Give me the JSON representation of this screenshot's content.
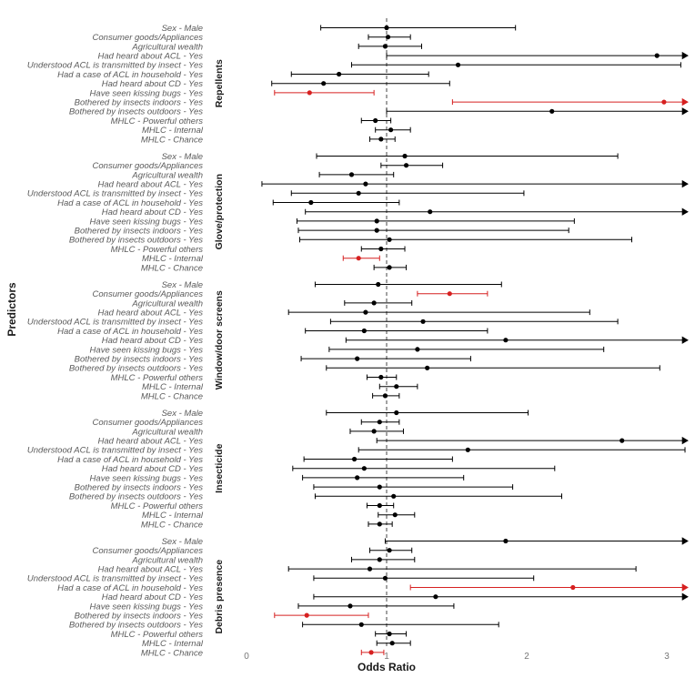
{
  "chart_data": {
    "type": "forest",
    "xlabel": "Odds Ratio",
    "ylabel": "Predictors",
    "xlim": [
      0,
      3.15
    ],
    "x_ticks": [
      0,
      1,
      2,
      3
    ],
    "x_tick_labels": [
      "0",
      "1",
      "2",
      "3"
    ],
    "reference_line": 1,
    "colors": {
      "normal": "#000000",
      "significant": "#d62020",
      "reference": "#444444"
    },
    "panels": [
      {
        "name": "Repellents",
        "rows": [
          {
            "label": "Sex - Male",
            "or": 1.0,
            "lo": 0.53,
            "hi": 1.92,
            "sig": false,
            "arrow": false
          },
          {
            "label": "Consumer goods/Appliances",
            "or": 1.01,
            "lo": 0.87,
            "hi": 1.17,
            "sig": false,
            "arrow": false
          },
          {
            "label": "Agricultural wealth",
            "or": 0.99,
            "lo": 0.8,
            "hi": 1.25,
            "sig": false,
            "arrow": false
          },
          {
            "label": "Had heard about ACL - Yes",
            "or": 2.93,
            "lo": 1.0,
            "hi": 3.15,
            "sig": false,
            "arrow": true
          },
          {
            "label": "Understood ACL is transmitted by insect - Yes",
            "or": 1.51,
            "lo": 0.75,
            "hi": 3.1,
            "sig": false,
            "arrow": false
          },
          {
            "label": "Had a case of ACL in household - Yes",
            "or": 0.66,
            "lo": 0.32,
            "hi": 1.3,
            "sig": false,
            "arrow": false
          },
          {
            "label": "Had heard about CD - Yes",
            "or": 0.55,
            "lo": 0.18,
            "hi": 1.45,
            "sig": false,
            "arrow": false
          },
          {
            "label": "Have seen kissing bugs - Yes",
            "or": 0.45,
            "lo": 0.2,
            "hi": 0.91,
            "sig": true,
            "arrow": false
          },
          {
            "label": "Bothered by insects indoors - Yes",
            "or": 2.98,
            "lo": 1.47,
            "hi": 3.15,
            "sig": true,
            "arrow": true
          },
          {
            "label": "Bothered by insects outdoors - Yes",
            "or": 2.18,
            "lo": 1.0,
            "hi": 3.15,
            "sig": false,
            "arrow": true
          },
          {
            "label": "MHLC - Powerful others",
            "or": 0.92,
            "lo": 0.82,
            "hi": 1.03,
            "sig": false,
            "arrow": false
          },
          {
            "label": "MHLC - Internal",
            "or": 1.03,
            "lo": 0.92,
            "hi": 1.17,
            "sig": false,
            "arrow": false
          },
          {
            "label": "MHLC - Chance",
            "or": 0.96,
            "lo": 0.88,
            "hi": 1.06,
            "sig": false,
            "arrow": false
          }
        ]
      },
      {
        "name": "Glove/protection",
        "rows": [
          {
            "label": "Sex - Male",
            "or": 1.13,
            "lo": 0.5,
            "hi": 2.65,
            "sig": false,
            "arrow": false
          },
          {
            "label": "Consumer goods/Appliances",
            "or": 1.14,
            "lo": 0.96,
            "hi": 1.4,
            "sig": false,
            "arrow": false
          },
          {
            "label": "Agricultural wealth",
            "or": 0.75,
            "lo": 0.52,
            "hi": 1.05,
            "sig": false,
            "arrow": false
          },
          {
            "label": "Had heard about ACL - Yes",
            "or": 0.85,
            "lo": 0.11,
            "hi": 3.15,
            "sig": false,
            "arrow": true
          },
          {
            "label": "Understood ACL is transmitted by insect - Yes",
            "or": 0.8,
            "lo": 0.32,
            "hi": 1.98,
            "sig": false,
            "arrow": false
          },
          {
            "label": "Had a case of ACL in household - Yes",
            "or": 0.46,
            "lo": 0.19,
            "hi": 1.09,
            "sig": false,
            "arrow": false
          },
          {
            "label": "Had heard about CD - Yes",
            "or": 1.31,
            "lo": 0.42,
            "hi": 3.15,
            "sig": false,
            "arrow": true
          },
          {
            "label": "Have seen kissing bugs - Yes",
            "or": 0.93,
            "lo": 0.36,
            "hi": 2.34,
            "sig": false,
            "arrow": false
          },
          {
            "label": "Bothered by insects indoors - Yes",
            "or": 0.93,
            "lo": 0.37,
            "hi": 2.3,
            "sig": false,
            "arrow": false
          },
          {
            "label": "Bothered by insects outdoors - Yes",
            "or": 1.02,
            "lo": 0.38,
            "hi": 2.75,
            "sig": false,
            "arrow": false
          },
          {
            "label": "MHLC - Powerful others",
            "or": 0.96,
            "lo": 0.82,
            "hi": 1.13,
            "sig": false,
            "arrow": false
          },
          {
            "label": "MHLC - Internal",
            "or": 0.8,
            "lo": 0.69,
            "hi": 0.95,
            "sig": true,
            "arrow": false
          },
          {
            "label": "MHLC - Chance",
            "or": 1.02,
            "lo": 0.91,
            "hi": 1.14,
            "sig": false,
            "arrow": false
          }
        ]
      },
      {
        "name": "Window/door screens",
        "rows": [
          {
            "label": "Sex - Male",
            "or": 0.94,
            "lo": 0.49,
            "hi": 1.82,
            "sig": false,
            "arrow": false
          },
          {
            "label": "Consumer goods/Appliances",
            "or": 1.45,
            "lo": 1.22,
            "hi": 1.72,
            "sig": true,
            "arrow": false
          },
          {
            "label": "Agricultural wealth",
            "or": 0.91,
            "lo": 0.7,
            "hi": 1.18,
            "sig": false,
            "arrow": false
          },
          {
            "label": "Had heard about ACL - Yes",
            "or": 0.85,
            "lo": 0.3,
            "hi": 2.45,
            "sig": false,
            "arrow": false
          },
          {
            "label": "Understood ACL is transmitted by insect - Yes",
            "or": 1.26,
            "lo": 0.6,
            "hi": 2.65,
            "sig": false,
            "arrow": false
          },
          {
            "label": "Had a case of ACL in household - Yes",
            "or": 0.84,
            "lo": 0.42,
            "hi": 1.72,
            "sig": false,
            "arrow": false
          },
          {
            "label": "Had heard about CD - Yes",
            "or": 1.85,
            "lo": 0.71,
            "hi": 3.15,
            "sig": false,
            "arrow": true
          },
          {
            "label": "Have seen kissing bugs - Yes",
            "or": 1.22,
            "lo": 0.59,
            "hi": 2.55,
            "sig": false,
            "arrow": false
          },
          {
            "label": "Bothered by insects indoors - Yes",
            "or": 0.79,
            "lo": 0.39,
            "hi": 1.6,
            "sig": false,
            "arrow": false
          },
          {
            "label": "Bothered by insects outdoors - Yes",
            "or": 1.29,
            "lo": 0.57,
            "hi": 2.95,
            "sig": false,
            "arrow": false
          },
          {
            "label": "MHLC - Powerful others",
            "or": 0.96,
            "lo": 0.86,
            "hi": 1.07,
            "sig": false,
            "arrow": false
          },
          {
            "label": "MHLC - Internal",
            "or": 1.07,
            "lo": 0.95,
            "hi": 1.22,
            "sig": false,
            "arrow": false
          },
          {
            "label": "MHLC - Chance",
            "or": 0.99,
            "lo": 0.9,
            "hi": 1.09,
            "sig": false,
            "arrow": false
          }
        ]
      },
      {
        "name": "Insecticide",
        "rows": [
          {
            "label": "Sex - Male",
            "or": 1.07,
            "lo": 0.57,
            "hi": 2.01,
            "sig": false,
            "arrow": false
          },
          {
            "label": "Consumer goods/Appliances",
            "or": 0.95,
            "lo": 0.82,
            "hi": 1.09,
            "sig": false,
            "arrow": false
          },
          {
            "label": "Agricultural wealth",
            "or": 0.91,
            "lo": 0.74,
            "hi": 1.12,
            "sig": false,
            "arrow": false
          },
          {
            "label": "Had heard about ACL - Yes",
            "or": 2.68,
            "lo": 0.93,
            "hi": 3.15,
            "sig": false,
            "arrow": true
          },
          {
            "label": "Understood ACL is transmitted by insect - Yes",
            "or": 1.58,
            "lo": 0.8,
            "hi": 3.13,
            "sig": false,
            "arrow": false
          },
          {
            "label": "Had a case of ACL in household - Yes",
            "or": 0.77,
            "lo": 0.41,
            "hi": 1.47,
            "sig": false,
            "arrow": false
          },
          {
            "label": "Had heard about CD - Yes",
            "or": 0.84,
            "lo": 0.33,
            "hi": 2.2,
            "sig": false,
            "arrow": false
          },
          {
            "label": "Have seen kissing bugs - Yes",
            "or": 0.79,
            "lo": 0.4,
            "hi": 1.55,
            "sig": false,
            "arrow": false
          },
          {
            "label": "Bothered by insects indoors - Yes",
            "or": 0.95,
            "lo": 0.48,
            "hi": 1.9,
            "sig": false,
            "arrow": false
          },
          {
            "label": "Bothered by insects outdoors - Yes",
            "or": 1.05,
            "lo": 0.49,
            "hi": 2.25,
            "sig": false,
            "arrow": false
          },
          {
            "label": "MHLC - Powerful others",
            "or": 0.95,
            "lo": 0.86,
            "hi": 1.05,
            "sig": false,
            "arrow": false
          },
          {
            "label": "MHLC - Internal",
            "or": 1.06,
            "lo": 0.94,
            "hi": 1.2,
            "sig": false,
            "arrow": false
          },
          {
            "label": "MHLC - Chance",
            "or": 0.95,
            "lo": 0.87,
            "hi": 1.04,
            "sig": false,
            "arrow": false
          }
        ]
      },
      {
        "name": "Debris presence",
        "rows": [
          {
            "label": "Sex - Male",
            "or": 1.85,
            "lo": 0.99,
            "hi": 3.15,
            "sig": false,
            "arrow": true
          },
          {
            "label": "Consumer goods/Appliances",
            "or": 1.02,
            "lo": 0.88,
            "hi": 1.18,
            "sig": false,
            "arrow": false
          },
          {
            "label": "Agricultural wealth",
            "or": 0.95,
            "lo": 0.75,
            "hi": 1.2,
            "sig": false,
            "arrow": false
          },
          {
            "label": "Had heard about ACL - Yes",
            "or": 0.88,
            "lo": 0.3,
            "hi": 2.78,
            "sig": false,
            "arrow": false
          },
          {
            "label": "Understood ACL is transmitted by insect - Yes",
            "or": 0.99,
            "lo": 0.48,
            "hi": 2.05,
            "sig": false,
            "arrow": false
          },
          {
            "label": "Had a case of ACL in household - Yes",
            "or": 2.33,
            "lo": 1.17,
            "hi": 3.15,
            "sig": true,
            "arrow": true
          },
          {
            "label": "Had heard about CD - Yes",
            "or": 1.35,
            "lo": 0.48,
            "hi": 3.15,
            "sig": false,
            "arrow": true
          },
          {
            "label": "Have seen kissing bugs - Yes",
            "or": 0.74,
            "lo": 0.37,
            "hi": 1.48,
            "sig": false,
            "arrow": false
          },
          {
            "label": "Bothered by insects indoors - Yes",
            "or": 0.43,
            "lo": 0.2,
            "hi": 0.87,
            "sig": true,
            "arrow": false
          },
          {
            "label": "Bothered by insects outdoors - Yes",
            "or": 0.82,
            "lo": 0.4,
            "hi": 1.8,
            "sig": false,
            "arrow": false
          },
          {
            "label": "MHLC - Powerful others",
            "or": 1.02,
            "lo": 0.92,
            "hi": 1.14,
            "sig": false,
            "arrow": false
          },
          {
            "label": "MHLC - Internal",
            "or": 1.04,
            "lo": 0.93,
            "hi": 1.17,
            "sig": false,
            "arrow": false
          },
          {
            "label": "MHLC - Chance",
            "or": 0.89,
            "lo": 0.82,
            "hi": 0.98,
            "sig": true,
            "arrow": false
          }
        ]
      }
    ]
  }
}
